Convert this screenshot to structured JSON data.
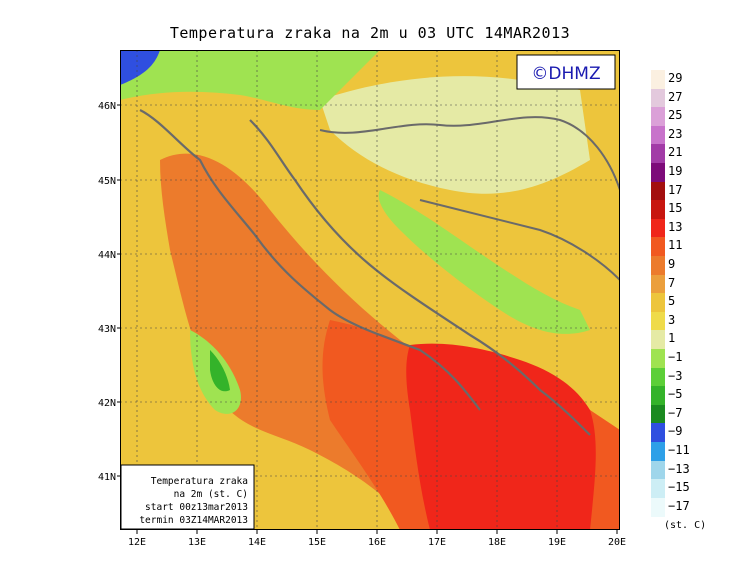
{
  "title": "Temperatura zraka na 2m u 03 UTC 14MAR2013",
  "watermark": "©DHMZ",
  "info_box": {
    "line1": "Temperatura zraka",
    "line2": "na 2m (st. C)",
    "line3": "start 00z13mar2013",
    "line4": "termin 03Z14MAR2013"
  },
  "x_ticks": [
    "12E",
    "13E",
    "14E",
    "15E",
    "16E",
    "17E",
    "18E",
    "19E",
    "20E"
  ],
  "y_ticks": [
    "46N",
    "45N",
    "44N",
    "43N",
    "42N",
    "41N"
  ],
  "colorbar": {
    "labels": [
      "29",
      "27",
      "25",
      "23",
      "21",
      "19",
      "17",
      "15",
      "13",
      "11",
      "9",
      "7",
      "5",
      "3",
      "1",
      "−1",
      "−3",
      "−5",
      "−7",
      "−9",
      "−11",
      "−13",
      "−15",
      "−17"
    ],
    "colors": [
      "#fbf0e1",
      "#e3c9dd",
      "#dba0d8",
      "#c873cb",
      "#a23ba7",
      "#7d0b7a",
      "#a30f0f",
      "#c8160f",
      "#f0261a",
      "#f15920",
      "#ec7b2c",
      "#eb9f3c",
      "#edc53c",
      "#efdb4a",
      "#e5eaa5",
      "#9fe351",
      "#5ccf38",
      "#34b32a",
      "#1b8a20",
      "#2f4fe0",
      "#2ea0e8",
      "#9fd6eb",
      "#cdeef5",
      "#ecfafb"
    ],
    "unit": "(st. C)"
  }
}
